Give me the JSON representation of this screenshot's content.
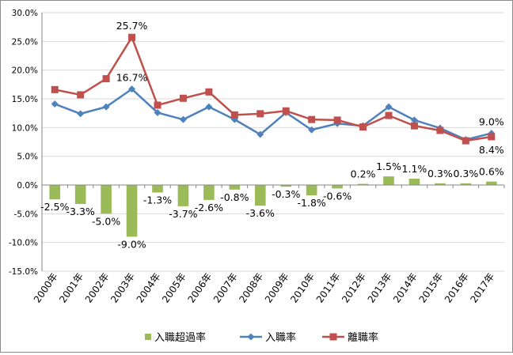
{
  "chart_data": {
    "type": "bar+line",
    "categories": [
      "2000年",
      "2001年",
      "2002年",
      "2003年",
      "2004年",
      "2005年",
      "2006年",
      "2007年",
      "2008年",
      "2009年",
      "2010年",
      "2011年",
      "2012年",
      "2013年",
      "2014年",
      "2015年",
      "2016年",
      "2017年"
    ],
    "ylim": [
      -15,
      30
    ],
    "yticks": [
      -15,
      -10,
      -5,
      0,
      5,
      10,
      15,
      20,
      25,
      30
    ],
    "ytick_labels": [
      "-15.0%",
      "-10.0%",
      "-5.0%",
      "0.0%",
      "5.0%",
      "10.0%",
      "15.0%",
      "20.0%",
      "25.0%",
      "30.0%"
    ],
    "grid": "horizontal",
    "legend_position": "bottom",
    "series": [
      {
        "name": "入職超過率",
        "kind": "bar",
        "color": "#9bbb59",
        "values": [
          -2.5,
          -3.3,
          -5.0,
          -9.0,
          -1.3,
          -3.7,
          -2.6,
          -0.8,
          -3.6,
          -0.3,
          -1.8,
          -0.6,
          0.2,
          1.5,
          1.1,
          0.3,
          0.3,
          0.6
        ],
        "labels": [
          "-2.5%",
          "-3.3%",
          "-5.0%",
          "-9.0%",
          "-1.3%",
          "-3.7%",
          "-2.6%",
          "-0.8%",
          "-3.6%",
          "-0.3%",
          "-1.8%",
          "-0.6%",
          "0.2%",
          "1.5%",
          "1.1%",
          "0.3%",
          "0.3%",
          "0.6%"
        ]
      },
      {
        "name": "入職率",
        "kind": "line",
        "color": "#4f81bd",
        "marker": "diamond",
        "values": [
          14.1,
          12.4,
          13.6,
          16.7,
          12.6,
          11.4,
          13.6,
          11.4,
          8.8,
          12.6,
          9.6,
          10.7,
          10.3,
          13.6,
          11.3,
          9.9,
          7.9,
          9.0
        ]
      },
      {
        "name": "離職率",
        "kind": "line",
        "color": "#c0504d",
        "marker": "square",
        "values": [
          16.6,
          15.7,
          18.5,
          25.7,
          13.9,
          15.1,
          16.2,
          12.2,
          12.4,
          12.9,
          11.4,
          11.3,
          10.1,
          12.1,
          10.3,
          9.5,
          7.7,
          8.4
        ]
      }
    ],
    "annotations": [
      {
        "series": 2,
        "index": 3,
        "text": "25.7%"
      },
      {
        "series": 1,
        "index": 3,
        "text": "16.7%"
      },
      {
        "series": 1,
        "index": 17,
        "text": "9.0%"
      },
      {
        "series": 2,
        "index": 17,
        "text": "8.4%"
      }
    ]
  }
}
